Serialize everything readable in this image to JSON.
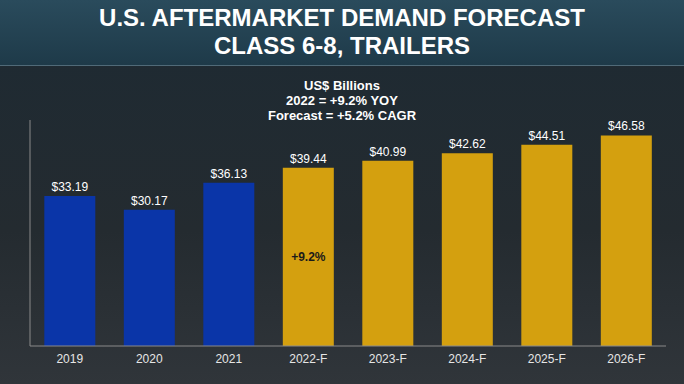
{
  "chart_data": {
    "type": "bar",
    "title": "U.S. AFTERMARKET DEMAND FORECAST\nCLASS 6-8, TRAILERS",
    "subtitle": [
      "US$ Billions",
      "2022 = +9.2% YOY",
      "Forecast = +5.2% CAGR"
    ],
    "categories": [
      "2019",
      "2020",
      "2021",
      "2022-F",
      "2023-F",
      "2024-F",
      "2025-F",
      "2026-F"
    ],
    "values": [
      33.19,
      30.17,
      36.13,
      39.44,
      40.99,
      42.62,
      44.51,
      46.58
    ],
    "value_labels": [
      "$33.19",
      "$30.17",
      "$36.13",
      "$39.44",
      "$40.99",
      "$42.62",
      "$44.51",
      "$46.58"
    ],
    "colors": [
      "#0a35a8",
      "#0a35a8",
      "#0a35a8",
      "#d4a00f",
      "#d4a00f",
      "#d4a00f",
      "#d4a00f",
      "#d4a00f"
    ],
    "annotations": [
      {
        "category": "2022-F",
        "text": "+9.2%"
      }
    ],
    "data_labels": true,
    "tick_labels": "x",
    "grid": false,
    "ylim": [
      0,
      50
    ]
  }
}
